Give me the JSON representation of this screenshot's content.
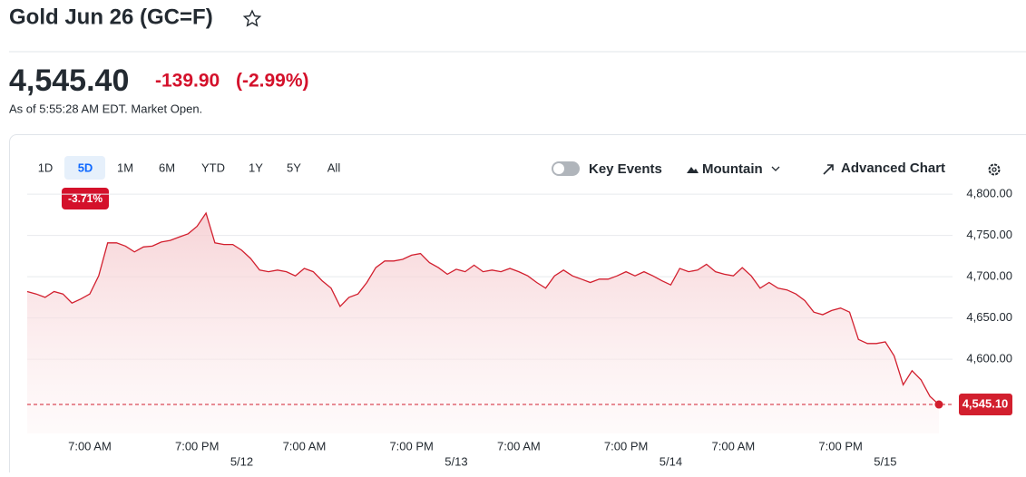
{
  "header": {
    "title": "Gold Jun 26 (GC=F)"
  },
  "quote": {
    "price": "4,545.40",
    "change": "-139.90",
    "change_pct": "(-2.99%)",
    "as_of": "As of 5:55:28 AM EDT. Market Open."
  },
  "range_buttons": [
    "1D",
    "5D",
    "1M",
    "6M",
    "YTD",
    "1Y",
    "5Y",
    "All"
  ],
  "range_change": "-3.71%",
  "controls": {
    "key_events": "Key Events",
    "chart_type": "Mountain",
    "advanced": "Advanced Chart"
  },
  "chart_data": {
    "type": "area",
    "color": "#d21f2e",
    "categories": [
      null,
      null,
      null,
      null,
      null,
      null,
      null,
      "7:00 AM",
      null,
      null,
      null,
      null,
      null,
      null,
      null,
      null,
      null,
      null,
      null,
      "7:00 PM",
      null,
      null,
      null,
      null,
      null,
      null,
      null,
      null,
      null,
      null,
      null,
      "7:00 AM",
      null,
      null,
      null,
      null,
      null,
      null,
      null,
      null,
      null,
      null,
      null,
      "7:00 PM",
      null,
      null,
      null,
      null,
      null,
      null,
      null,
      null,
      null,
      null,
      null,
      "7:00 AM",
      null,
      null,
      null,
      null,
      null,
      null,
      null,
      null,
      null,
      null,
      null,
      "7:00 PM",
      null,
      null,
      null,
      null,
      null,
      null,
      null,
      null,
      null,
      null,
      null,
      "7:00 AM",
      null,
      null,
      null,
      null,
      null,
      null,
      null,
      null,
      null,
      null,
      null,
      "7:00 PM",
      null,
      null,
      null,
      null,
      null,
      null,
      null,
      null,
      null,
      null,
      null
    ],
    "date_labels": [
      null,
      null,
      null,
      null,
      null,
      null,
      null,
      null,
      null,
      null,
      null,
      null,
      null,
      null,
      null,
      null,
      null,
      null,
      null,
      null,
      null,
      null,
      null,
      null,
      "5/12",
      null,
      null,
      null,
      null,
      null,
      null,
      null,
      null,
      null,
      null,
      null,
      null,
      null,
      null,
      null,
      null,
      null,
      null,
      null,
      null,
      null,
      null,
      null,
      "5/13",
      null,
      null,
      null,
      null,
      null,
      null,
      null,
      null,
      null,
      null,
      null,
      null,
      null,
      null,
      null,
      null,
      null,
      null,
      null,
      null,
      null,
      null,
      null,
      "5/14",
      null,
      null,
      null,
      null,
      null,
      null,
      null,
      null,
      null,
      null,
      null,
      null,
      null,
      null,
      null,
      null,
      null,
      null,
      null,
      null,
      null,
      null,
      null,
      "5/15",
      null,
      null,
      null,
      null,
      null,
      null
    ],
    "values": [
      4682,
      4679,
      4675,
      4682,
      4679,
      4668,
      4673,
      4679,
      4701,
      4741,
      4741,
      4737,
      4730,
      4736,
      4737,
      4742,
      4744,
      4748,
      4752,
      4761,
      4777,
      4741,
      4739,
      4739,
      4732,
      4722,
      4708,
      4706,
      4708,
      4706,
      4701,
      4710,
      4706,
      4695,
      4686,
      4664,
      4675,
      4679,
      4693,
      4711,
      4719,
      4719,
      4721,
      4726,
      4728,
      4717,
      4711,
      4703,
      4709,
      4706,
      4714,
      4706,
      4708,
      4706,
      4710,
      4706,
      4701,
      4693,
      4686,
      4701,
      4708,
      4701,
      4697,
      4693,
      4697,
      4697,
      4701,
      4706,
      4701,
      4706,
      4701,
      4695,
      4690,
      4710,
      4706,
      4708,
      4715,
      4706,
      4703,
      4701,
      4711,
      4701,
      4686,
      4693,
      4686,
      4684,
      4679,
      4671,
      4657,
      4654,
      4659,
      4662,
      4657,
      4624,
      4619,
      4619,
      4621,
      4604,
      4569,
      4586,
      4575,
      4555,
      4545.1
    ],
    "ylim": [
      4510,
      4810
    ],
    "yticks": [
      {
        "value": 4600,
        "label": "4,600.00"
      },
      {
        "value": 4650,
        "label": "4,650.00"
      },
      {
        "value": 4700,
        "label": "4,700.00"
      },
      {
        "value": 4750,
        "label": "4,750.00"
      },
      {
        "value": 4800,
        "label": "4,800.00"
      }
    ],
    "grid": true,
    "last_price": {
      "value": 4545.1,
      "label": "4,545.10"
    }
  }
}
